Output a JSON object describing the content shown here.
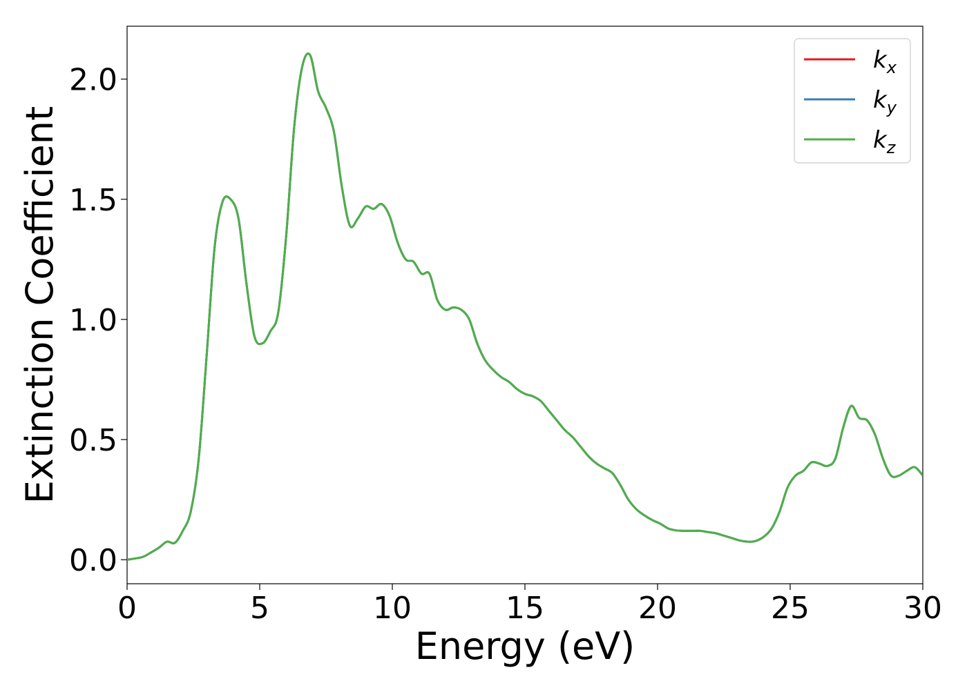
{
  "colors": {
    "kx": "#e41a1c",
    "ky": "#377eb8",
    "kz": "#4daf4a",
    "axis": "#000000",
    "legend_border": "#cccccc"
  },
  "chart_data": {
    "type": "line",
    "title": "",
    "xlabel": "Energy (eV)",
    "ylabel": "Extinction Coefficient",
    "xlim": [
      0,
      30
    ],
    "ylim": [
      -0.1,
      2.22
    ],
    "grid": false,
    "legend_position": "top-right",
    "x_ticks": [
      0,
      5,
      10,
      15,
      20,
      25,
      30
    ],
    "y_ticks": [
      0.0,
      0.5,
      1.0,
      1.5,
      2.0
    ],
    "x_tick_labels": [
      "0",
      "5",
      "10",
      "15",
      "20",
      "25",
      "30"
    ],
    "y_tick_labels": [
      "0.0",
      "0.5",
      "1.0",
      "1.5",
      "2.0"
    ],
    "legend": [
      {
        "base": "k",
        "sub": "x",
        "color_key": "kx"
      },
      {
        "base": "k",
        "sub": "y",
        "color_key": "ky"
      },
      {
        "base": "k",
        "sub": "z",
        "color_key": "kz"
      }
    ],
    "x": [
      0,
      0.3,
      0.6,
      0.9,
      1.2,
      1.5,
      1.8,
      2.1,
      2.4,
      2.7,
      3.0,
      3.3,
      3.6,
      3.9,
      4.2,
      4.5,
      4.8,
      5.1,
      5.4,
      5.7,
      6.0,
      6.3,
      6.6,
      6.9,
      7.2,
      7.5,
      7.8,
      8.1,
      8.4,
      8.7,
      9.0,
      9.3,
      9.6,
      9.9,
      10.2,
      10.5,
      10.8,
      11.1,
      11.4,
      11.7,
      12.0,
      12.3,
      12.6,
      12.9,
      13.2,
      13.5,
      13.8,
      14.1,
      14.4,
      14.7,
      15.0,
      15.3,
      15.6,
      15.9,
      16.2,
      16.5,
      16.8,
      17.1,
      17.4,
      17.7,
      18.0,
      18.3,
      18.6,
      18.9,
      19.2,
      19.5,
      19.8,
      20.1,
      20.4,
      20.7,
      21.0,
      21.3,
      21.6,
      21.9,
      22.2,
      22.5,
      22.8,
      23.1,
      23.4,
      23.7,
      24.0,
      24.3,
      24.6,
      24.9,
      25.2,
      25.5,
      25.8,
      26.1,
      26.4,
      26.7,
      27.0,
      27.3,
      27.6,
      27.9,
      28.2,
      28.5,
      28.8,
      29.1,
      29.4,
      29.7,
      30.0
    ],
    "series": [
      {
        "color_key": "kx",
        "values": [
          0.0,
          0.005,
          0.012,
          0.03,
          0.05,
          0.075,
          0.07,
          0.12,
          0.2,
          0.42,
          0.85,
          1.3,
          1.49,
          1.5,
          1.42,
          1.15,
          0.93,
          0.9,
          0.95,
          1.03,
          1.35,
          1.8,
          2.05,
          2.1,
          1.95,
          1.88,
          1.78,
          1.55,
          1.39,
          1.42,
          1.47,
          1.46,
          1.48,
          1.43,
          1.32,
          1.25,
          1.24,
          1.19,
          1.19,
          1.08,
          1.04,
          1.05,
          1.04,
          1.0,
          0.9,
          0.83,
          0.79,
          0.76,
          0.74,
          0.71,
          0.69,
          0.68,
          0.66,
          0.62,
          0.58,
          0.54,
          0.51,
          0.47,
          0.43,
          0.4,
          0.38,
          0.36,
          0.31,
          0.25,
          0.21,
          0.185,
          0.165,
          0.15,
          0.13,
          0.122,
          0.12,
          0.12,
          0.12,
          0.115,
          0.11,
          0.1,
          0.09,
          0.08,
          0.075,
          0.078,
          0.095,
          0.13,
          0.2,
          0.3,
          0.35,
          0.37,
          0.405,
          0.4,
          0.39,
          0.42,
          0.55,
          0.64,
          0.59,
          0.58,
          0.52,
          0.42,
          0.35,
          0.35,
          0.37,
          0.385,
          0.35
        ]
      },
      {
        "color_key": "ky",
        "values": [
          0.0,
          0.005,
          0.012,
          0.03,
          0.05,
          0.075,
          0.07,
          0.12,
          0.2,
          0.42,
          0.85,
          1.3,
          1.49,
          1.5,
          1.42,
          1.15,
          0.93,
          0.9,
          0.95,
          1.03,
          1.35,
          1.8,
          2.05,
          2.1,
          1.95,
          1.88,
          1.78,
          1.55,
          1.39,
          1.42,
          1.47,
          1.46,
          1.48,
          1.43,
          1.32,
          1.25,
          1.24,
          1.19,
          1.19,
          1.08,
          1.04,
          1.05,
          1.04,
          1.0,
          0.9,
          0.83,
          0.79,
          0.76,
          0.74,
          0.71,
          0.69,
          0.68,
          0.66,
          0.62,
          0.58,
          0.54,
          0.51,
          0.47,
          0.43,
          0.4,
          0.38,
          0.36,
          0.31,
          0.25,
          0.21,
          0.185,
          0.165,
          0.15,
          0.13,
          0.122,
          0.12,
          0.12,
          0.12,
          0.115,
          0.11,
          0.1,
          0.09,
          0.08,
          0.075,
          0.078,
          0.095,
          0.13,
          0.2,
          0.3,
          0.35,
          0.37,
          0.405,
          0.4,
          0.39,
          0.42,
          0.55,
          0.64,
          0.59,
          0.58,
          0.52,
          0.42,
          0.35,
          0.35,
          0.37,
          0.385,
          0.35
        ]
      },
      {
        "color_key": "kz",
        "values": [
          0.0,
          0.005,
          0.012,
          0.03,
          0.05,
          0.075,
          0.07,
          0.12,
          0.2,
          0.42,
          0.85,
          1.3,
          1.49,
          1.5,
          1.42,
          1.15,
          0.93,
          0.9,
          0.95,
          1.03,
          1.35,
          1.8,
          2.05,
          2.1,
          1.95,
          1.88,
          1.78,
          1.55,
          1.39,
          1.42,
          1.47,
          1.46,
          1.48,
          1.43,
          1.32,
          1.25,
          1.24,
          1.19,
          1.19,
          1.08,
          1.04,
          1.05,
          1.04,
          1.0,
          0.9,
          0.83,
          0.79,
          0.76,
          0.74,
          0.71,
          0.69,
          0.68,
          0.66,
          0.62,
          0.58,
          0.54,
          0.51,
          0.47,
          0.43,
          0.4,
          0.38,
          0.36,
          0.31,
          0.25,
          0.21,
          0.185,
          0.165,
          0.15,
          0.13,
          0.122,
          0.12,
          0.12,
          0.12,
          0.115,
          0.11,
          0.1,
          0.09,
          0.08,
          0.075,
          0.078,
          0.095,
          0.13,
          0.2,
          0.3,
          0.35,
          0.37,
          0.405,
          0.4,
          0.39,
          0.42,
          0.55,
          0.64,
          0.59,
          0.58,
          0.52,
          0.42,
          0.35,
          0.35,
          0.37,
          0.385,
          0.35
        ]
      }
    ]
  }
}
